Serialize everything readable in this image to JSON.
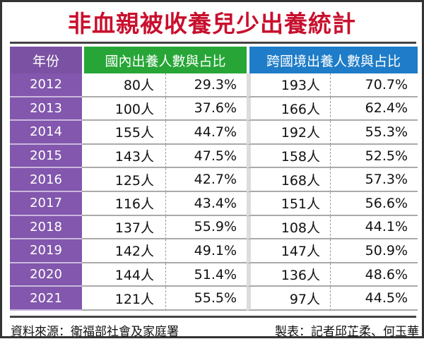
{
  "title": "非血親被收養兒少出養統計",
  "chart_data": {
    "type": "table",
    "title": "非血親被收養兒少出養統計",
    "columns": [
      "年份",
      "國內出養人數與占比",
      "跨國境出養人數與占比"
    ],
    "rows": [
      {
        "year": "2012",
        "dom_n": "80人",
        "dom_p": "29.3%",
        "int_n": "193人",
        "int_p": "70.7%"
      },
      {
        "year": "2013",
        "dom_n": "100人",
        "dom_p": "37.6%",
        "int_n": "166人",
        "int_p": "62.4%"
      },
      {
        "year": "2014",
        "dom_n": "155人",
        "dom_p": "44.7%",
        "int_n": "192人",
        "int_p": "55.3%"
      },
      {
        "year": "2015",
        "dom_n": "143人",
        "dom_p": "47.5%",
        "int_n": "158人",
        "int_p": "52.5%"
      },
      {
        "year": "2016",
        "dom_n": "125人",
        "dom_p": "42.7%",
        "int_n": "168人",
        "int_p": "57.3%"
      },
      {
        "year": "2017",
        "dom_n": "116人",
        "dom_p": "43.4%",
        "int_n": "151人",
        "int_p": "56.6%"
      },
      {
        "year": "2018",
        "dom_n": "137人",
        "dom_p": "55.9%",
        "int_n": "108人",
        "int_p": "44.1%"
      },
      {
        "year": "2019",
        "dom_n": "142人",
        "dom_p": "49.1%",
        "int_n": "147人",
        "int_p": "50.9%"
      },
      {
        "year": "2020",
        "dom_n": "144人",
        "dom_p": "51.4%",
        "int_n": "136人",
        "int_p": "48.6%"
      },
      {
        "year": "2021",
        "dom_n": "121人",
        "dom_p": "55.5%",
        "int_n": "97人",
        "int_p": "44.5%"
      }
    ]
  },
  "colors": {
    "title": "#c8102e",
    "year": "#7b52a3",
    "domestic": "#27a637",
    "international": "#1e7cc8"
  },
  "footer": {
    "source": "資料來源：衛福部社會及家庭署",
    "credit": "製表：記者邱芷柔、何玉華"
  }
}
